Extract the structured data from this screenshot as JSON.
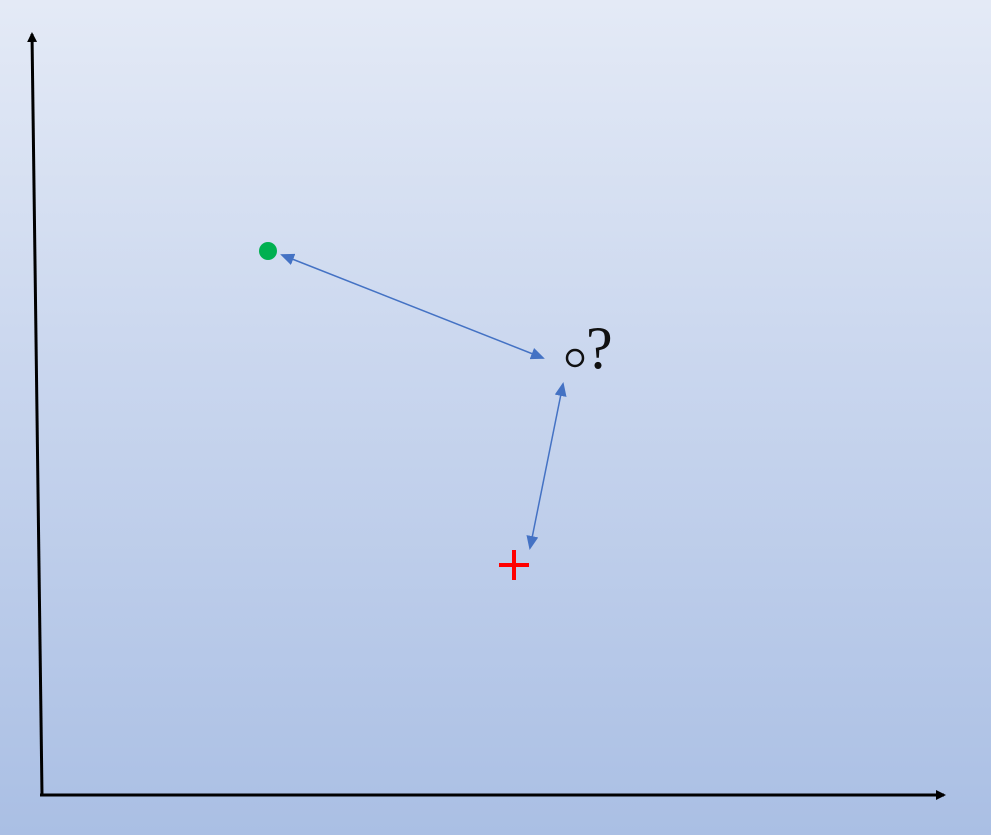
{
  "diagram": {
    "query_label": "?",
    "colors": {
      "axis": "#000000",
      "arrow": "#4472c4",
      "green_point": "#00b050",
      "red_point": "#ff0000",
      "query_point": "#111111"
    },
    "points": [
      {
        "name": "green-point",
        "shape": "filled-circle"
      },
      {
        "name": "red-point",
        "shape": "plus"
      },
      {
        "name": "query-point",
        "shape": "open-circle"
      }
    ],
    "arrows": [
      {
        "name": "arrow-query-to-green",
        "style": "double-headed"
      },
      {
        "name": "arrow-query-to-red",
        "style": "double-headed"
      }
    ]
  }
}
